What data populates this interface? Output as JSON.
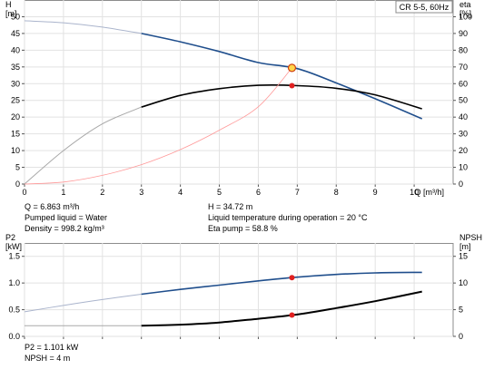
{
  "chart_data": [
    {
      "type": "line",
      "legend_box": "CR 5-5, 60Hz",
      "xlabel": "Q [m³/h]",
      "xlim": [
        0,
        11
      ],
      "xticks": [
        0,
        1,
        2,
        3,
        4,
        5,
        6,
        7,
        8,
        9,
        10
      ],
      "grid": true,
      "y_left": {
        "label_lines": [
          "H",
          "[m]"
        ],
        "ylim": [
          0,
          55
        ],
        "ticks": [
          0,
          5,
          10,
          15,
          20,
          25,
          30,
          35,
          40,
          45,
          50
        ]
      },
      "y_right": {
        "label_lines": [
          "eta",
          "[%]"
        ],
        "ylim": [
          0,
          110
        ],
        "ticks": [
          0,
          10,
          20,
          30,
          40,
          50,
          60,
          70,
          80,
          90,
          100
        ]
      },
      "series": [
        {
          "axis": "left",
          "color": "#1f4e8c",
          "lite_color": "#aab4cc",
          "x": [
            0,
            1,
            2,
            3,
            4,
            5,
            6,
            7,
            8,
            9,
            10.2
          ],
          "y": [
            48.8,
            48.2,
            46.9,
            45.0,
            42.5,
            39.6,
            36.3,
            34.5,
            30.2,
            25.5,
            19.5
          ]
        },
        {
          "axis": "right",
          "color": "#000000",
          "lite_color": "#a8a8a8",
          "x": [
            0,
            1,
            2,
            3,
            4,
            5,
            6,
            7,
            8,
            9,
            10.2
          ],
          "y": [
            0,
            20,
            36,
            46,
            53,
            57,
            59,
            58.8,
            57.2,
            53.3,
            45
          ]
        },
        {
          "axis": "left",
          "color": "#ff9999",
          "dashed": false,
          "x": [
            0,
            1,
            2,
            3,
            4,
            5,
            6,
            6.863
          ],
          "y": [
            0,
            0.6,
            2.6,
            5.8,
            10.3,
            16.1,
            23.1,
            34.72
          ]
        }
      ],
      "operating_point": {
        "x": 6.863,
        "y": 34.72,
        "eta": 58.8
      }
    },
    {
      "type": "line",
      "xlim": [
        0,
        11
      ],
      "grid": true,
      "y_left": {
        "label_lines": [
          "P2",
          "[kW]"
        ],
        "ylim": [
          0,
          1.75
        ],
        "ticks": [
          "0.0",
          "0.5",
          "1.0",
          "1.5"
        ]
      },
      "y_right": {
        "label_lines": [
          "NPSH",
          "[m]"
        ],
        "ylim": [
          0,
          17.5
        ],
        "ticks": [
          0,
          5,
          10,
          15
        ]
      },
      "series": [
        {
          "axis": "left",
          "color": "#1f4e8c",
          "lite_color": "#aab4cc",
          "x": [
            0,
            1,
            2,
            3,
            4,
            5,
            6,
            7,
            8,
            9,
            10.2
          ],
          "y": [
            0.46,
            0.58,
            0.69,
            0.79,
            0.88,
            0.96,
            1.04,
            1.11,
            1.16,
            1.19,
            1.2
          ]
        },
        {
          "axis": "right",
          "color": "#000000",
          "lite_color": "#a8a8a8",
          "x": [
            0,
            1,
            2,
            3,
            4,
            5,
            6,
            7,
            8,
            9,
            10.2
          ],
          "y": [
            2.0,
            2.0,
            2.0,
            2.0,
            2.2,
            2.6,
            3.3,
            4.1,
            5.3,
            6.6,
            8.4
          ]
        }
      ],
      "operating_point": {
        "x": 6.863,
        "p2": 1.101,
        "npsh": 4
      }
    }
  ],
  "info_top_left": [
    "Q = 6.863 m³/h",
    "Pumped liquid = Water",
    "Density = 998.2 kg/m³"
  ],
  "info_top_right": [
    "H = 34.72 m",
    "Liquid temperature during operation = 20 °C",
    "Eta pump = 58.8 %"
  ],
  "info_bottom": [
    "P2 = 1.101 kW",
    "NPSH = 4 m"
  ]
}
